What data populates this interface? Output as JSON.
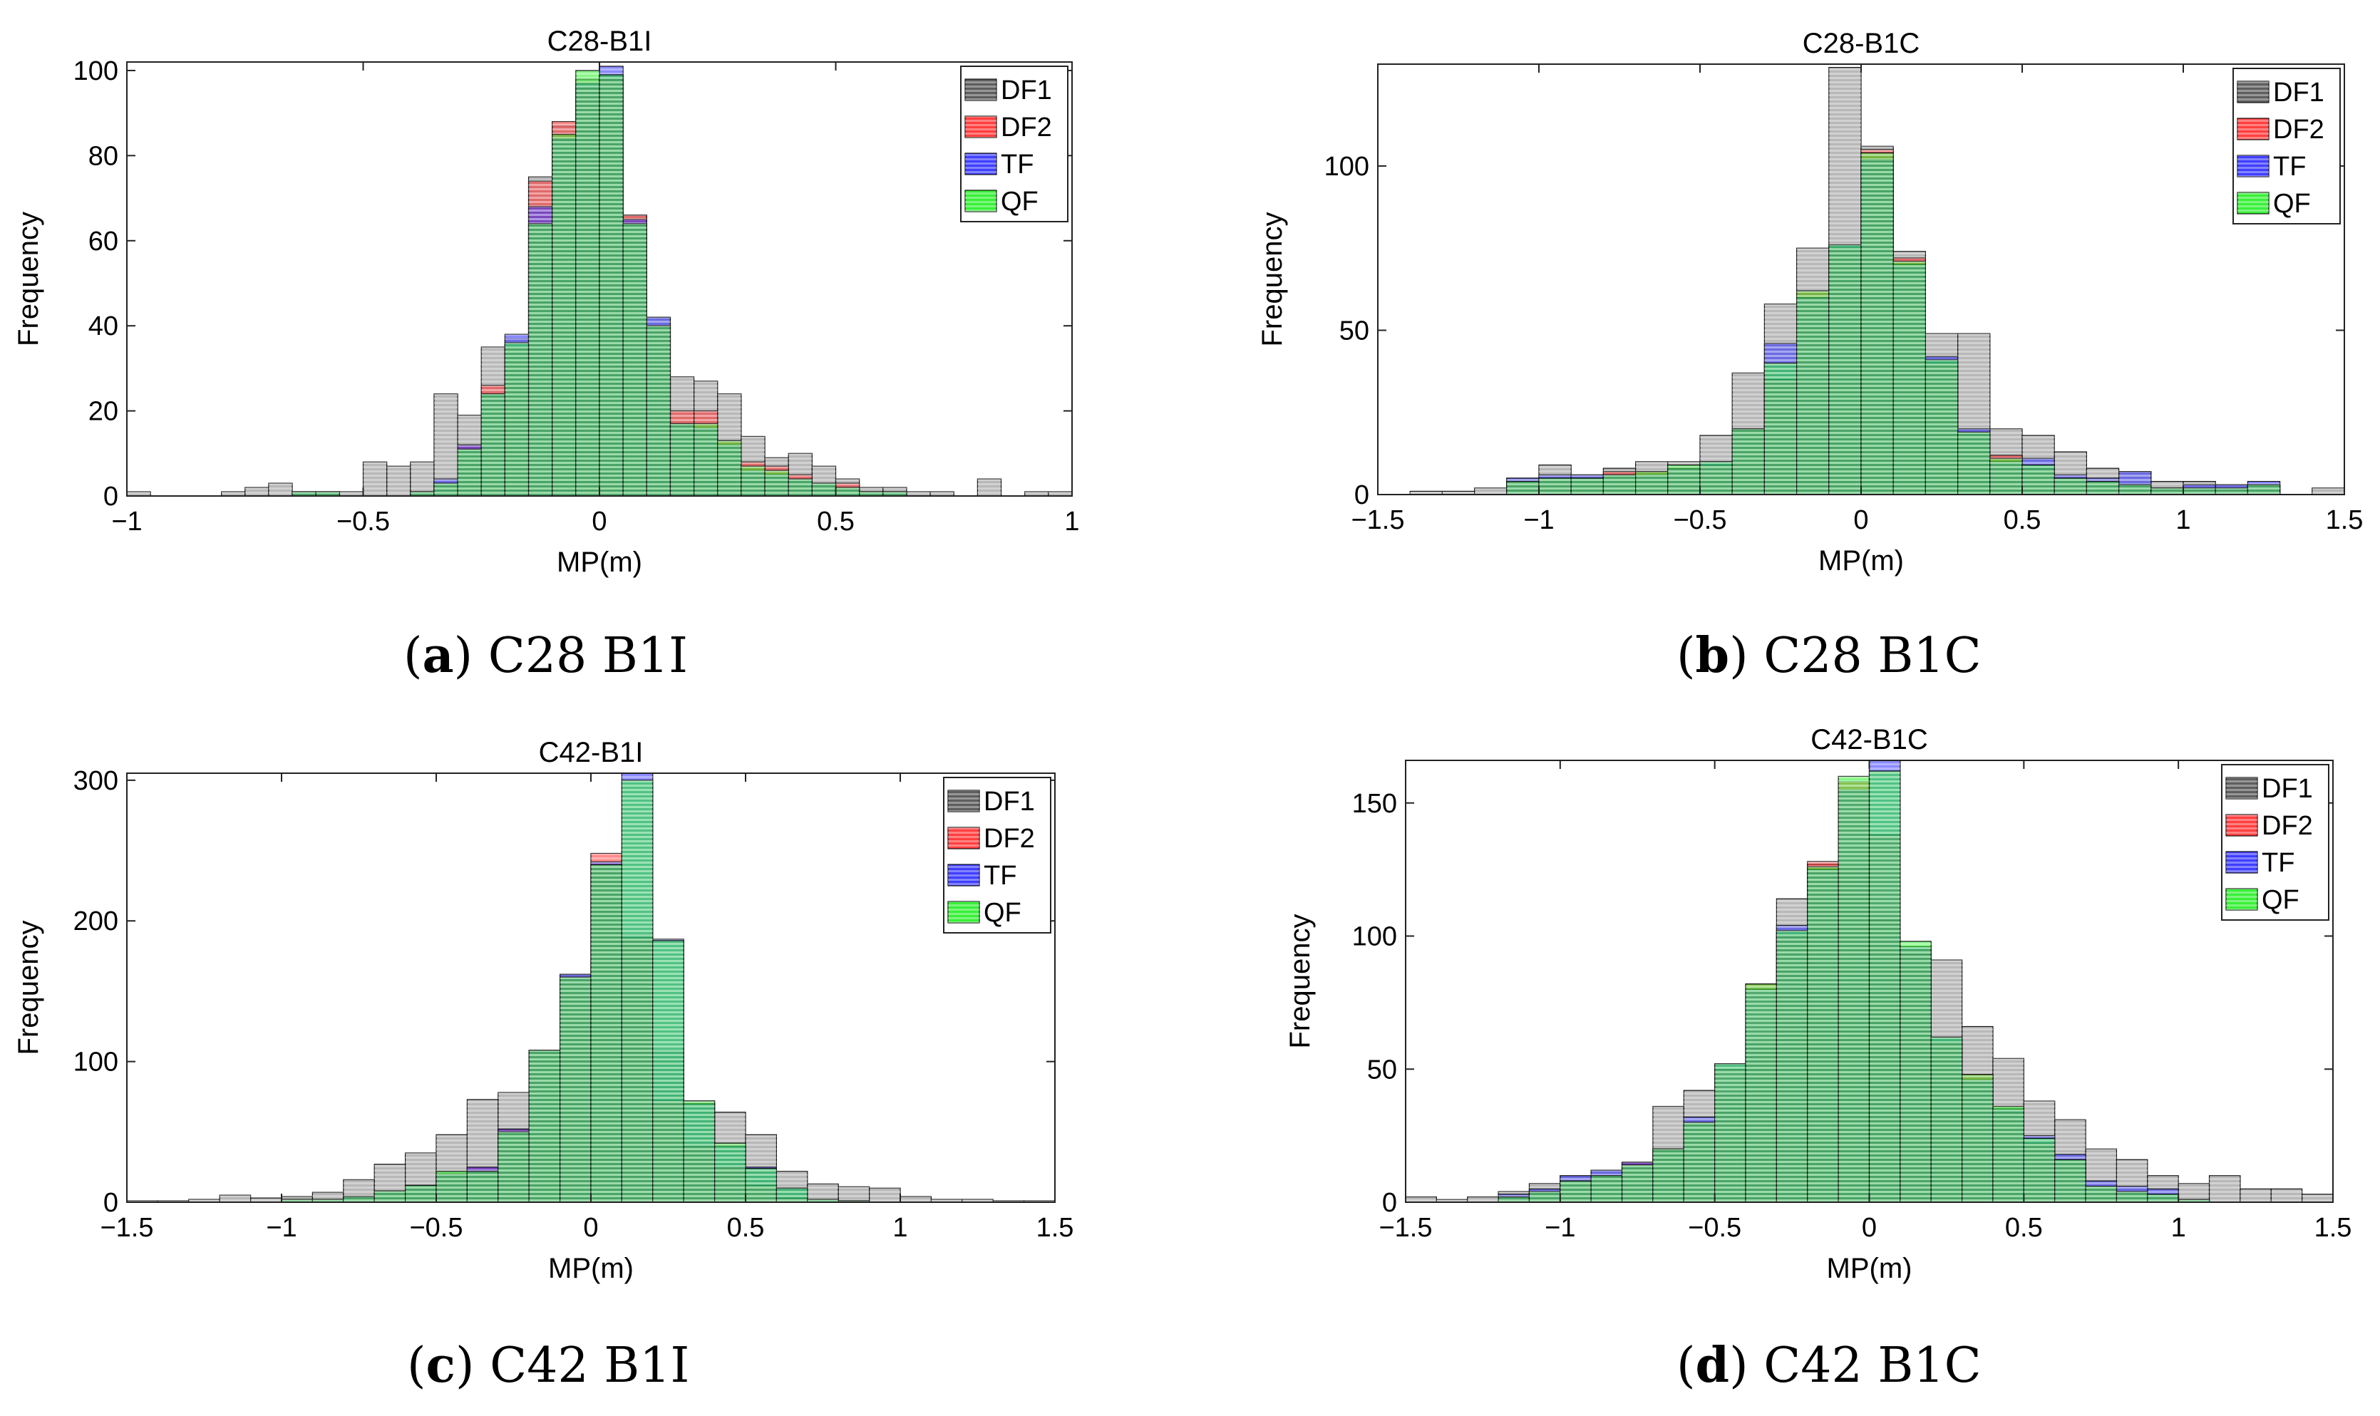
{
  "figure": {
    "captions": [
      {
        "letter": "a",
        "text": "C28 B1I"
      },
      {
        "letter": "b",
        "text": "C28 B1C"
      },
      {
        "letter": "c",
        "text": "C42 B1I"
      },
      {
        "letter": "d",
        "text": "C42 B1C"
      }
    ]
  },
  "colors": {
    "DF1": "#000000",
    "DF2": "#ff2a2a",
    "TF": "#2a2aff",
    "QF": "#22ee22",
    "overlap": "#1fb39a"
  },
  "chart_data": [
    {
      "type": "bar",
      "title": "C28-B1I",
      "xlabel": "MP(m)",
      "ylabel": "Frequency",
      "xlim": [
        -1,
        1
      ],
      "ylim": [
        0,
        102
      ],
      "xticks": [
        -1,
        -0.5,
        0,
        0.5,
        1
      ],
      "xtick_labels": [
        "−1",
        "−0.5",
        "0",
        "0.5",
        "1"
      ],
      "yticks": [
        0,
        20,
        40,
        60,
        80,
        100
      ],
      "ytick_labels": [
        "0",
        "20",
        "40",
        "60",
        "80",
        "100"
      ],
      "legend": [
        "DF1",
        "DF2",
        "TF",
        "QF"
      ],
      "legend_position": "top-right",
      "bin_width": 0.05,
      "series": [
        {
          "name": "DF1",
          "bin_starts": [
            -1.0,
            -0.95,
            -0.9,
            -0.85,
            -0.8,
            -0.75,
            -0.7,
            -0.65,
            -0.6,
            -0.55,
            -0.5,
            -0.45,
            -0.4,
            -0.35,
            -0.3,
            -0.25,
            -0.2,
            -0.15,
            -0.1,
            -0.05,
            0.0,
            0.05,
            0.1,
            0.15,
            0.2,
            0.25,
            0.3,
            0.35,
            0.4,
            0.45,
            0.5,
            0.55,
            0.6,
            0.65,
            0.7,
            0.75,
            0.8,
            0.85,
            0.9,
            0.95
          ],
          "values": [
            1,
            0,
            0,
            0,
            1,
            2,
            3,
            1,
            1,
            1,
            8,
            7,
            8,
            24,
            19,
            35,
            37,
            75,
            87,
            98,
            99,
            66,
            42,
            28,
            27,
            24,
            14,
            9,
            10,
            7,
            4,
            2,
            2,
            1,
            1,
            0,
            4,
            0,
            1,
            1
          ]
        },
        {
          "name": "DF2",
          "bin_starts": [
            -0.65,
            -0.6,
            -0.55,
            -0.5,
            -0.45,
            -0.4,
            -0.35,
            -0.3,
            -0.25,
            -0.2,
            -0.15,
            -0.1,
            -0.05,
            0.0,
            0.05,
            0.1,
            0.15,
            0.2,
            0.25,
            0.3,
            0.35,
            0.4,
            0.45,
            0.5,
            0.55,
            0.6,
            0.65
          ],
          "values": [
            1,
            1,
            0,
            0,
            0,
            1,
            3,
            12,
            26,
            35,
            74,
            88,
            96,
            98,
            66,
            40,
            20,
            20,
            13,
            8,
            7,
            5,
            3,
            3,
            1,
            1,
            0
          ]
        },
        {
          "name": "TF",
          "bin_starts": [
            -0.65,
            -0.6,
            -0.55,
            -0.5,
            -0.45,
            -0.4,
            -0.35,
            -0.3,
            -0.25,
            -0.2,
            -0.15,
            -0.1,
            -0.05,
            0.0,
            0.05,
            0.1,
            0.15,
            0.2,
            0.25,
            0.3,
            0.35,
            0.4,
            0.45,
            0.5,
            0.55,
            0.6,
            0.65
          ],
          "values": [
            1,
            1,
            0,
            0,
            0,
            1,
            4,
            12,
            24,
            38,
            68,
            84,
            97,
            101,
            65,
            42,
            17,
            16,
            12,
            6,
            5,
            4,
            3,
            2,
            1,
            1,
            0
          ]
        },
        {
          "name": "QF",
          "bin_starts": [
            -0.65,
            -0.6,
            -0.55,
            -0.5,
            -0.45,
            -0.4,
            -0.35,
            -0.3,
            -0.25,
            -0.2,
            -0.15,
            -0.1,
            -0.05,
            0.0,
            0.05,
            0.1,
            0.15,
            0.2,
            0.25,
            0.3,
            0.35,
            0.4,
            0.45,
            0.5,
            0.55,
            0.6,
            0.65
          ],
          "values": [
            1,
            1,
            0,
            0,
            0,
            1,
            3,
            11,
            24,
            36,
            64,
            85,
            100,
            99,
            64,
            40,
            17,
            17,
            13,
            7,
            6,
            4,
            3,
            2,
            1,
            1,
            0
          ]
        }
      ]
    },
    {
      "type": "bar",
      "title": "C28-B1C",
      "xlabel": "MP(m)",
      "ylabel": "Frequency",
      "xlim": [
        -1.5,
        1.5
      ],
      "ylim": [
        0,
        131
      ],
      "xticks": [
        -1.5,
        -1,
        -0.5,
        0,
        0.5,
        1,
        1.5
      ],
      "xtick_labels": [
        "−1.5",
        "−1",
        "−0.5",
        "0",
        "0.5",
        "1",
        "1.5"
      ],
      "yticks": [
        0,
        50,
        100
      ],
      "ytick_labels": [
        "0",
        "50",
        "100"
      ],
      "legend": [
        "DF1",
        "DF2",
        "TF",
        "QF"
      ],
      "legend_position": "top-right",
      "bin_width": 0.1,
      "series": [
        {
          "name": "DF1",
          "bin_starts": [
            -1.5,
            -1.4,
            -1.3,
            -1.2,
            -1.1,
            -1.0,
            -0.9,
            -0.8,
            -0.7,
            -0.6,
            -0.5,
            -0.4,
            -0.3,
            -0.2,
            -0.1,
            0.0,
            0.1,
            0.2,
            0.3,
            0.4,
            0.5,
            0.6,
            0.7,
            0.8,
            0.9,
            1.0,
            1.1,
            1.2,
            1.3,
            1.4
          ],
          "values": [
            0,
            1,
            1,
            2,
            5,
            9,
            6,
            8,
            10,
            10,
            18,
            37,
            58,
            75,
            130,
            106,
            74,
            49,
            49,
            20,
            18,
            13,
            8,
            7,
            4,
            4,
            3,
            3,
            0,
            2
          ]
        },
        {
          "name": "DF2",
          "bin_starts": [
            -1.4,
            -1.3,
            -1.2,
            -1.1,
            -1.0,
            -0.9,
            -0.8,
            -0.7,
            -0.6,
            -0.5,
            -0.4,
            -0.3,
            -0.2,
            -0.1,
            0.0,
            0.1,
            0.2,
            0.3,
            0.4,
            0.5,
            0.6,
            0.7,
            0.8,
            0.9,
            1.0,
            1.1,
            1.2,
            1.3
          ],
          "values": [
            0,
            0,
            0,
            4,
            5,
            5,
            7,
            7,
            8,
            9,
            20,
            35,
            62,
            75,
            105,
            72,
            40,
            19,
            12,
            8,
            5,
            4,
            3,
            2,
            2,
            2,
            3,
            0
          ]
        },
        {
          "name": "TF",
          "bin_starts": [
            -1.4,
            -1.3,
            -1.2,
            -1.1,
            -1.0,
            -0.9,
            -0.8,
            -0.7,
            -0.6,
            -0.5,
            -0.4,
            -0.3,
            -0.2,
            -0.1,
            0.0,
            0.1,
            0.2,
            0.3,
            0.4,
            0.5,
            0.6,
            0.7,
            0.8,
            0.9,
            1.0,
            1.1,
            1.2,
            1.3
          ],
          "values": [
            0,
            0,
            0,
            5,
            6,
            6,
            6,
            6,
            8,
            10,
            20,
            46,
            60,
            76,
            102,
            70,
            42,
            20,
            10,
            11,
            6,
            5,
            7,
            2,
            3,
            3,
            4,
            0
          ]
        },
        {
          "name": "QF",
          "bin_starts": [
            -1.4,
            -1.3,
            -1.2,
            -1.1,
            -1.0,
            -0.9,
            -0.8,
            -0.7,
            -0.6,
            -0.5,
            -0.4,
            -0.3,
            -0.2,
            -0.1,
            0.0,
            0.1,
            0.2,
            0.3,
            0.4,
            0.5,
            0.6,
            0.7,
            0.8,
            0.9,
            1.0,
            1.1,
            1.2,
            1.3
          ],
          "values": [
            0,
            0,
            0,
            4,
            5,
            5,
            6,
            7,
            9,
            10,
            20,
            40,
            62,
            76,
            104,
            71,
            41,
            19,
            11,
            9,
            5,
            4,
            3,
            2,
            2,
            2,
            3,
            0
          ]
        }
      ]
    },
    {
      "type": "bar",
      "title": "C42-B1I",
      "xlabel": "MP(m)",
      "ylabel": "Frequency",
      "xlim": [
        -1.5,
        1.5
      ],
      "ylim": [
        0,
        305
      ],
      "xticks": [
        -1.5,
        -1,
        -0.5,
        0,
        0.5,
        1,
        1.5
      ],
      "xtick_labels": [
        "−1.5",
        "−1",
        "−0.5",
        "0",
        "0.5",
        "1",
        "1.5"
      ],
      "yticks": [
        0,
        100,
        200,
        300
      ],
      "ytick_labels": [
        "0",
        "100",
        "200",
        "300"
      ],
      "legend": [
        "DF1",
        "DF2",
        "TF",
        "QF"
      ],
      "legend_position": "top-right",
      "bin_width": 0.1,
      "series": [
        {
          "name": "DF1",
          "bin_starts": [
            -1.5,
            -1.4,
            -1.3,
            -1.2,
            -1.1,
            -1.0,
            -0.9,
            -0.8,
            -0.7,
            -0.6,
            -0.5,
            -0.4,
            -0.3,
            -0.2,
            -0.1,
            0.0,
            0.1,
            0.2,
            0.3,
            0.4,
            0.5,
            0.6,
            0.7,
            0.8,
            0.9,
            1.0,
            1.1,
            1.2,
            1.3,
            1.4
          ],
          "values": [
            1,
            1,
            2,
            5,
            3,
            4,
            7,
            16,
            27,
            35,
            48,
            73,
            78,
            108,
            162,
            240,
            190,
            108,
            72,
            64,
            48,
            22,
            13,
            11,
            10,
            4,
            2,
            2,
            1,
            1
          ]
        },
        {
          "name": "DF2",
          "bin_starts": [
            -1.0,
            -0.9,
            -0.8,
            -0.7,
            -0.6,
            -0.5,
            -0.4,
            -0.3,
            -0.2,
            -0.1,
            0.0,
            0.1,
            0.2,
            0.3,
            0.4,
            0.5,
            0.6,
            0.7,
            0.8,
            0.9
          ],
          "values": [
            2,
            2,
            4,
            8,
            12,
            20,
            25,
            52,
            108,
            160,
            248,
            188,
            72,
            40,
            25,
            12,
            3,
            1,
            1,
            0
          ]
        },
        {
          "name": "TF",
          "bin_starts": [
            -1.0,
            -0.9,
            -0.8,
            -0.7,
            -0.6,
            -0.5,
            -0.4,
            -0.3,
            -0.2,
            -0.1,
            0.0,
            0.1,
            0.2,
            0.3,
            0.4,
            0.5,
            0.6,
            0.7,
            0.8,
            0.9
          ],
          "values": [
            2,
            2,
            4,
            8,
            12,
            20,
            25,
            52,
            108,
            162,
            242,
            305,
            187,
            70,
            40,
            25,
            10,
            2,
            1,
            0
          ]
        },
        {
          "name": "QF",
          "bin_starts": [
            -1.0,
            -0.9,
            -0.8,
            -0.7,
            -0.6,
            -0.5,
            -0.4,
            -0.3,
            -0.2,
            -0.1,
            0.0,
            0.1,
            0.2,
            0.3,
            0.4,
            0.5,
            0.6,
            0.7,
            0.8,
            0.9
          ],
          "values": [
            2,
            2,
            4,
            8,
            12,
            22,
            22,
            50,
            108,
            160,
            240,
            300,
            186,
            72,
            42,
            24,
            10,
            2,
            1,
            0
          ]
        }
      ]
    },
    {
      "type": "bar",
      "title": "C42-B1C",
      "xlabel": "MP(m)",
      "ylabel": "Frequency",
      "xlim": [
        -1.5,
        1.5
      ],
      "ylim": [
        0,
        166
      ],
      "xticks": [
        -1.5,
        -1,
        -0.5,
        0,
        0.5,
        1,
        1.5
      ],
      "xtick_labels": [
        "−1.5",
        "−1",
        "−0.5",
        "0",
        "0.5",
        "1",
        "1.5"
      ],
      "yticks": [
        0,
        50,
        100,
        150
      ],
      "ytick_labels": [
        "0",
        "50",
        "100",
        "150"
      ],
      "legend": [
        "DF1",
        "DF2",
        "TF",
        "QF"
      ],
      "legend_position": "top-right",
      "bin_width": 0.1,
      "series": [
        {
          "name": "DF1",
          "bin_starts": [
            -1.5,
            -1.4,
            -1.3,
            -1.2,
            -1.1,
            -1.0,
            -0.9,
            -0.8,
            -0.7,
            -0.6,
            -0.5,
            -0.4,
            -0.3,
            -0.2,
            -0.1,
            0.0,
            0.1,
            0.2,
            0.3,
            0.4,
            0.5,
            0.6,
            0.7,
            0.8,
            0.9,
            1.0,
            1.1,
            1.2,
            1.3,
            1.4
          ],
          "values": [
            2,
            1,
            2,
            4,
            7,
            10,
            12,
            15,
            36,
            42,
            41,
            60,
            114,
            127,
            126,
            106,
            93,
            91,
            66,
            54,
            38,
            31,
            20,
            16,
            10,
            7,
            10,
            5,
            5,
            3
          ]
        },
        {
          "name": "DF2",
          "bin_starts": [
            -1.2,
            -1.1,
            -1.0,
            -0.9,
            -0.8,
            -0.7,
            -0.6,
            -0.5,
            -0.4,
            -0.3,
            -0.2,
            -0.1,
            0.0,
            0.1,
            0.2,
            0.3,
            0.4,
            0.5,
            0.6,
            0.7,
            0.8,
            0.9,
            1.0,
            1.1
          ],
          "values": [
            2,
            4,
            8,
            10,
            15,
            20,
            30,
            50,
            82,
            100,
            128,
            158,
            138,
            95,
            60,
            48,
            34,
            22,
            16,
            6,
            4,
            2,
            1,
            0
          ]
        },
        {
          "name": "TF",
          "bin_starts": [
            -1.2,
            -1.1,
            -1.0,
            -0.9,
            -0.8,
            -0.7,
            -0.6,
            -0.5,
            -0.4,
            -0.3,
            -0.2,
            -0.1,
            0.0,
            0.1,
            0.2,
            0.3,
            0.4,
            0.5,
            0.6,
            0.7,
            0.8,
            0.9,
            1.0,
            1.1
          ],
          "values": [
            3,
            5,
            10,
            12,
            15,
            20,
            32,
            52,
            80,
            104,
            125,
            155,
            166,
            96,
            62,
            46,
            35,
            25,
            18,
            8,
            6,
            5,
            1,
            0
          ]
        },
        {
          "name": "QF",
          "bin_starts": [
            -1.2,
            -1.1,
            -1.0,
            -0.9,
            -0.8,
            -0.7,
            -0.6,
            -0.5,
            -0.4,
            -0.3,
            -0.2,
            -0.1,
            0.0,
            0.1,
            0.2,
            0.3,
            0.4,
            0.5,
            0.6,
            0.7,
            0.8,
            0.9,
            1.0,
            1.1
          ],
          "values": [
            2,
            4,
            8,
            10,
            14,
            20,
            30,
            52,
            82,
            102,
            126,
            160,
            162,
            98,
            62,
            48,
            36,
            24,
            16,
            6,
            4,
            3,
            1,
            0
          ]
        }
      ]
    }
  ]
}
